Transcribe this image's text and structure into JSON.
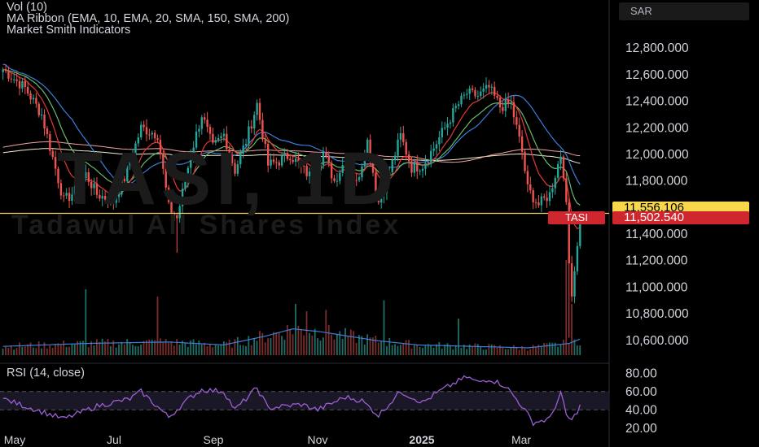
{
  "indicators": {
    "vol": "Vol (10)",
    "ma_ribbon": "MA Ribbon (EMA, 10, EMA, 20, SMA, 150, SMA, 200)",
    "market_smith": "Market Smith Indicators",
    "rsi": "RSI (14, close)"
  },
  "currency": "SAR",
  "watermark": {
    "symbol": "TASI, 1D",
    "name": "Tadawul All Shares Index"
  },
  "symbol_tag": "TASI",
  "current_price": "11,502.540",
  "line_price": "11,556.106",
  "colors": {
    "up": "#26a69a",
    "down": "#ef5350",
    "ema10": "#e53935",
    "ema20": "#66bb6a",
    "sma150": "#f4a3a3",
    "sma200": "#f5f0d0",
    "rsi": "#9c5fd6",
    "volma": "#3d7fd8",
    "hline": "#f2d16b",
    "price_tag": "#d0262e",
    "line_tag": "#f8d84a"
  },
  "chart_data": {
    "type": "candlestick",
    "price_axis": {
      "ticks": [
        "12,800.000",
        "12,600.000",
        "12,400.000",
        "12,200.000",
        "12,000.000",
        "11,800.000",
        "11,400.000",
        "11,200.000",
        "11,000.000",
        "10,800.000",
        "10,600.000"
      ],
      "range": [
        10470,
        12930
      ]
    },
    "rsi_axis": {
      "ticks": [
        "80.00",
        "60.00",
        "40.00",
        "20.00"
      ],
      "range": [
        10,
        90
      ],
      "bands": [
        40,
        60
      ]
    },
    "time_axis": {
      "ticks": [
        "May",
        "Jul",
        "Sep",
        "Nov",
        "2025",
        "Mar"
      ],
      "bold": "2025"
    },
    "horizontal_line": 11556,
    "close_anchors": [
      [
        0,
        12640
      ],
      [
        8,
        12500
      ],
      [
        14,
        12300
      ],
      [
        22,
        11650
      ],
      [
        26,
        11720
      ],
      [
        30,
        11850
      ],
      [
        34,
        11700
      ],
      [
        40,
        11650
      ],
      [
        44,
        11820
      ],
      [
        50,
        12200
      ],
      [
        56,
        12150
      ],
      [
        60,
        11600
      ],
      [
        63,
        11520
      ],
      [
        68,
        12000
      ],
      [
        72,
        12300
      ],
      [
        76,
        12050
      ],
      [
        80,
        12150
      ],
      [
        84,
        11880
      ],
      [
        88,
        12100
      ],
      [
        92,
        12380
      ],
      [
        96,
        11920
      ],
      [
        100,
        11950
      ],
      [
        104,
        12000
      ],
      [
        108,
        11900
      ],
      [
        112,
        11820
      ],
      [
        116,
        12010
      ],
      [
        120,
        11800
      ],
      [
        124,
        11960
      ],
      [
        128,
        11780
      ],
      [
        132,
        12100
      ],
      [
        136,
        11640
      ],
      [
        140,
        11870
      ],
      [
        144,
        12140
      ],
      [
        148,
        11900
      ],
      [
        152,
        11920
      ],
      [
        156,
        12050
      ],
      [
        160,
        12200
      ],
      [
        164,
        12350
      ],
      [
        168,
        12460
      ],
      [
        172,
        12440
      ],
      [
        176,
        12500
      ],
      [
        180,
        12360
      ],
      [
        184,
        12380
      ],
      [
        188,
        12020
      ],
      [
        190,
        11740
      ],
      [
        194,
        11620
      ],
      [
        198,
        11700
      ],
      [
        202,
        12000
      ],
      [
        204,
        11640
      ],
      [
        205,
        11180
      ],
      [
        206,
        10930
      ],
      [
        209,
        11500
      ]
    ],
    "rsi_anchors": [
      [
        0,
        52
      ],
      [
        14,
        38
      ],
      [
        22,
        30
      ],
      [
        34,
        44
      ],
      [
        46,
        52
      ],
      [
        50,
        60
      ],
      [
        60,
        32
      ],
      [
        68,
        54
      ],
      [
        72,
        62
      ],
      [
        80,
        60
      ],
      [
        84,
        40
      ],
      [
        92,
        64
      ],
      [
        96,
        42
      ],
      [
        108,
        46
      ],
      [
        114,
        40
      ],
      [
        124,
        54
      ],
      [
        130,
        50
      ],
      [
        136,
        34
      ],
      [
        144,
        60
      ],
      [
        152,
        48
      ],
      [
        158,
        60
      ],
      [
        164,
        70
      ],
      [
        168,
        76
      ],
      [
        172,
        70
      ],
      [
        176,
        74
      ],
      [
        182,
        66
      ],
      [
        188,
        44
      ],
      [
        192,
        26
      ],
      [
        198,
        30
      ],
      [
        202,
        58
      ],
      [
        204,
        34
      ],
      [
        206,
        28
      ],
      [
        209,
        44
      ]
    ],
    "volume_anchors": [
      [
        0,
        1.2
      ],
      [
        30,
        1.6
      ],
      [
        60,
        1.8
      ],
      [
        80,
        1.4
      ],
      [
        95,
        2.6
      ],
      [
        105,
        3.6
      ],
      [
        115,
        3.2
      ],
      [
        125,
        2.6
      ],
      [
        135,
        2.0
      ],
      [
        150,
        1.4
      ],
      [
        170,
        1.2
      ],
      [
        190,
        1.0
      ],
      [
        205,
        1.6
      ],
      [
        209,
        2.2
      ]
    ],
    "volume_spikes": [
      [
        30,
        9
      ],
      [
        56,
        8
      ],
      [
        106,
        7
      ],
      [
        110,
        6
      ],
      [
        117,
        6.2
      ],
      [
        138,
        7.5
      ],
      [
        165,
        5
      ],
      [
        204,
        13
      ],
      [
        206,
        7
      ]
    ]
  }
}
